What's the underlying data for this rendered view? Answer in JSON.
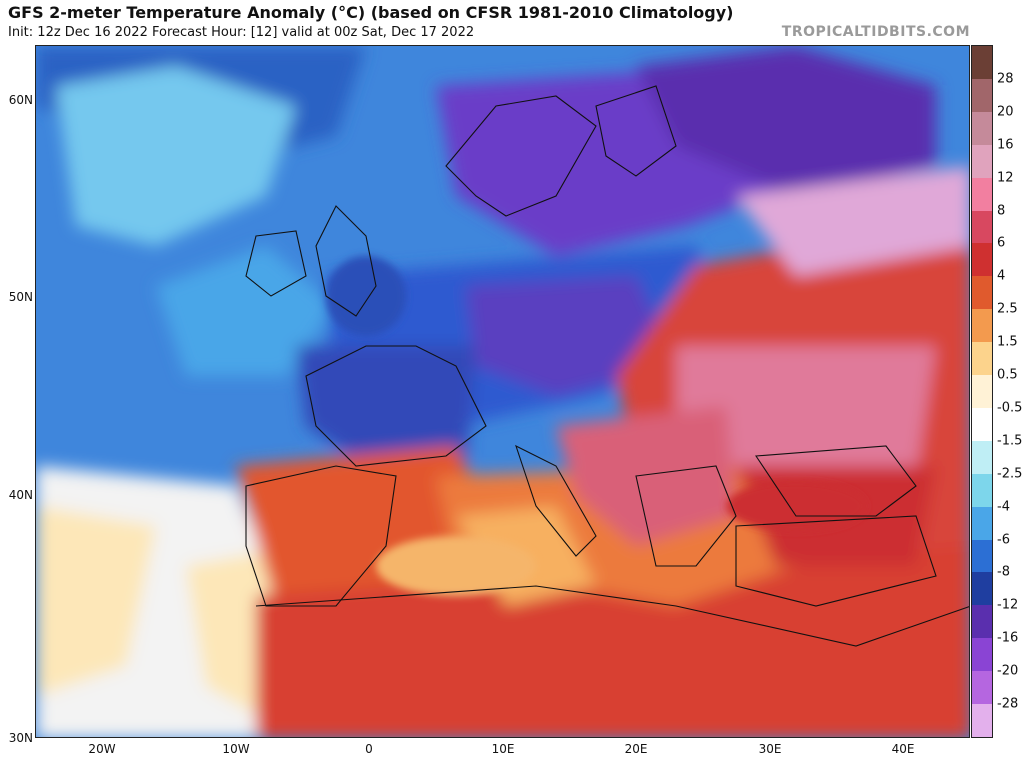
{
  "header": {
    "title": "GFS 2-meter Temperature Anomaly (°C) (based on CFSR 1981-2010 Climatology)",
    "subtitle": "Init: 12z Dec 16 2022   Forecast Hour: [12]   valid at 00z Sat, Dec 17 2022",
    "brand": "TROPICALTIDBITS.COM"
  },
  "map": {
    "lat_labels": [
      "60N",
      "50N",
      "40N",
      "30N"
    ],
    "lon_labels": [
      "20W",
      "10W",
      "0",
      "10E",
      "20E",
      "30E",
      "40E"
    ]
  },
  "colorbar": {
    "labels": [
      "28",
      "20",
      "16",
      "12",
      "8",
      "6",
      "4",
      "2.5",
      "1.5",
      "0.5",
      "-0.5",
      "-1.5",
      "-2.5",
      "-4",
      "-6",
      "-8",
      "-12",
      "-16",
      "-20",
      "-28"
    ],
    "colors": [
      "#6b3f35",
      "#a1666a",
      "#c58a9a",
      "#e0a3bd",
      "#f27fa0",
      "#d84860",
      "#cf3030",
      "#e05a2d",
      "#f39a4e",
      "#fcd38c",
      "#fff2d6",
      "#ffffff",
      "#bfeef5",
      "#7dd6eb",
      "#4aa6e8",
      "#2c6fd4",
      "#1f3ea0",
      "#5a2fae",
      "#8a44d4",
      "#b566e0",
      "#e3b0ec"
    ]
  }
}
